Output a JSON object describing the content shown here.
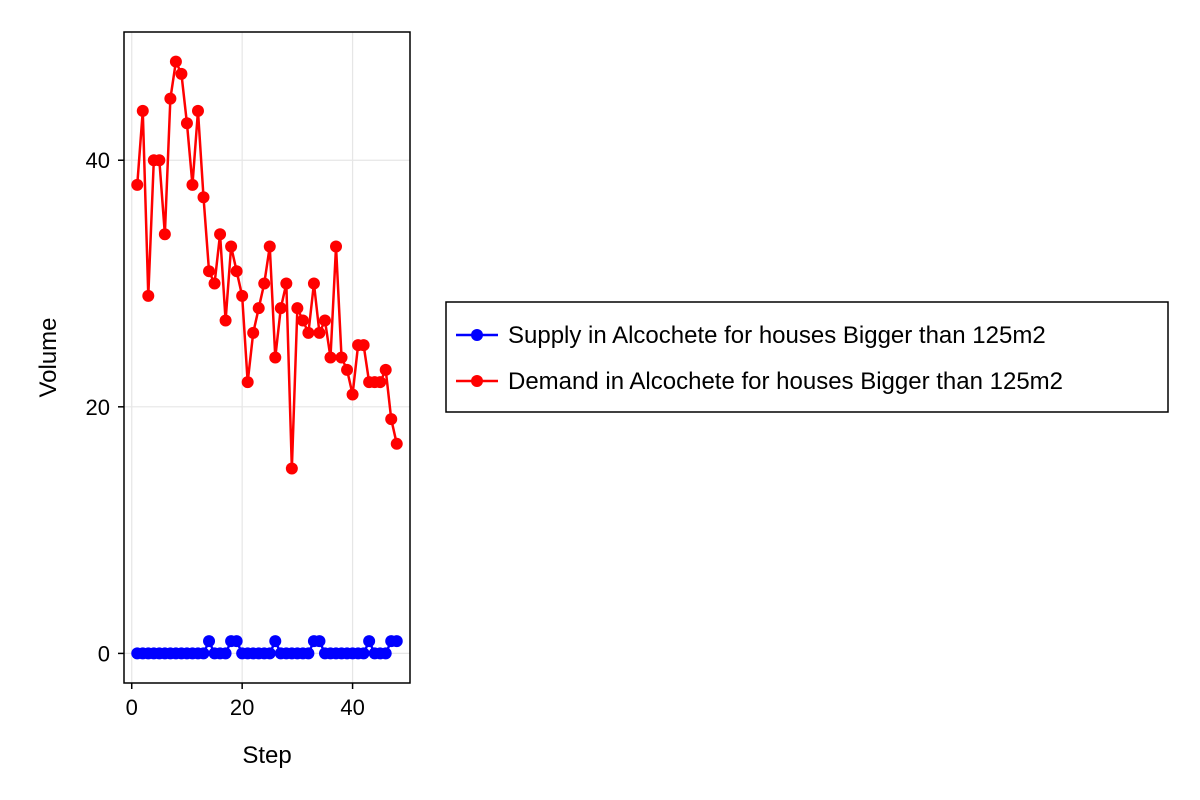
{
  "chart_data": {
    "type": "line",
    "xlabel": "Step",
    "ylabel": "Volume",
    "xlim": [
      -1.4,
      50.4
    ],
    "ylim": [
      -2.4,
      50.4
    ],
    "xticks": [
      0,
      20,
      40
    ],
    "yticks": [
      0,
      20,
      40
    ],
    "grid": true,
    "legend_position": "right",
    "x": [
      1,
      2,
      3,
      4,
      5,
      6,
      7,
      8,
      9,
      10,
      11,
      12,
      13,
      14,
      15,
      16,
      17,
      18,
      19,
      20,
      21,
      22,
      23,
      24,
      25,
      26,
      27,
      28,
      29,
      30,
      31,
      32,
      33,
      34,
      35,
      36,
      37,
      38,
      39,
      40,
      41,
      42,
      43,
      44,
      45,
      46,
      47,
      48
    ],
    "series": [
      {
        "name": "Supply in Alcochete for houses Bigger than 125m2",
        "color": "#0000ff",
        "values": [
          0,
          0,
          0,
          0,
          0,
          0,
          0,
          0,
          0,
          0,
          0,
          0,
          0,
          1,
          0,
          0,
          0,
          1,
          1,
          0,
          0,
          0,
          0,
          0,
          0,
          1,
          0,
          0,
          0,
          0,
          0,
          0,
          1,
          1,
          0,
          0,
          0,
          0,
          0,
          0,
          0,
          0,
          1,
          0,
          0,
          0,
          1,
          1
        ]
      },
      {
        "name": "Demand in Alcochete for houses Bigger than 125m2",
        "color": "#ff0000",
        "values": [
          38,
          44,
          29,
          40,
          40,
          34,
          45,
          48,
          47,
          43,
          38,
          44,
          37,
          31,
          30,
          34,
          27,
          33,
          31,
          29,
          22,
          26,
          28,
          30,
          33,
          24,
          28,
          30,
          15,
          28,
          27,
          26,
          30,
          26,
          27,
          24,
          33,
          24,
          23,
          21,
          25,
          25,
          22,
          22,
          22,
          23,
          19,
          17
        ]
      }
    ]
  }
}
